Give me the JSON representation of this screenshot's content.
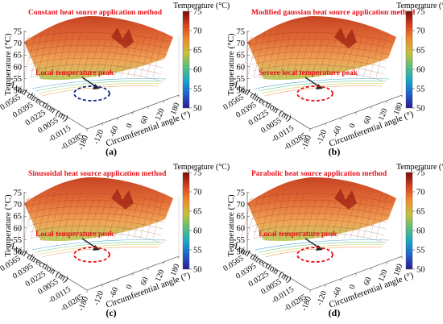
{
  "figure": {
    "colors": {
      "colormap": [
        "#2b1a8f",
        "#1f5fd0",
        "#18a6c8",
        "#5cc07a",
        "#c6c23a",
        "#f08a2a",
        "#d8401e",
        "#7a0a0a"
      ],
      "title_text": "#e8121b",
      "peak_ellipse_blue": "#1a2b8a",
      "peak_ellipse_red": "#e8121b"
    }
  },
  "chart_data": [
    {
      "type": "surface",
      "panel_label": "(a)",
      "title": "Constant heat source application method",
      "annotation": "Local temperature peak",
      "marker_color": "blue",
      "zlabel": "Temperature (°C)",
      "xlabel": "Circumferential angle (°)",
      "ylabel": "Axial direction (m)",
      "colorbar_title": "Temperature (°C)",
      "x_ticks": [
        "-180",
        "-120",
        "-60",
        "0",
        "60",
        "120",
        "180"
      ],
      "y_ticks": [
        "0.0565",
        "0.0395",
        "0.0225",
        "0.0055",
        "-0.0115",
        "-0.0285"
      ],
      "z_ticks": [
        "50",
        "55",
        "60",
        "65",
        "70",
        "75"
      ],
      "colorbar_ticks": [
        "50",
        "55",
        "60",
        "65",
        "70",
        "75"
      ],
      "zlim": [
        50,
        75
      ],
      "colorbar_range": [
        50,
        75
      ],
      "xlim": [
        -180,
        180
      ],
      "ylim": [
        -0.0285,
        0.0565
      ]
    },
    {
      "type": "surface",
      "panel_label": "(b)",
      "title": "Modified gaussian heat source application method",
      "annotation": "Severe local temperature peak",
      "marker_color": "red",
      "zlabel": "Temperature (°C)",
      "xlabel": "Circumferential angle (°)",
      "ylabel": "Axial direction (m)",
      "colorbar_title": "Temperature (°C)",
      "x_ticks": [
        "-180",
        "-120",
        "-60",
        "0",
        "60",
        "120",
        "180"
      ],
      "y_ticks": [
        "0.0565",
        "0.0395",
        "0.0225",
        "0.0055",
        "-0.0115",
        "-0.0285"
      ],
      "z_ticks": [
        "50",
        "55",
        "60",
        "65",
        "70",
        "75"
      ],
      "colorbar_ticks": [
        "50",
        "55",
        "60",
        "65",
        "70",
        "75"
      ],
      "zlim": [
        50,
        75
      ],
      "colorbar_range": [
        50,
        75
      ],
      "xlim": [
        -180,
        180
      ],
      "ylim": [
        -0.0285,
        0.0565
      ]
    },
    {
      "type": "surface",
      "panel_label": "(c)",
      "title": "Sinusoidal  heat source application method",
      "annotation": "Local temperature peak",
      "marker_color": "red",
      "zlabel": "Temperature (°C)",
      "xlabel": "Circumferential angle (°)",
      "ylabel": "Axial direction (m)",
      "colorbar_title": "Temperature (°C)",
      "x_ticks": [
        "-180",
        "-120",
        "-60",
        "0",
        "60",
        "120",
        "180"
      ],
      "y_ticks": [
        "0.0565",
        "0.0395",
        "0.0225",
        "0.0055",
        "-0.0115",
        "-0.0285"
      ],
      "z_ticks": [
        "50",
        "55",
        "60",
        "65",
        "70",
        "75"
      ],
      "colorbar_ticks": [
        "50",
        "55",
        "60",
        "65",
        "70",
        "75"
      ],
      "zlim": [
        50,
        75
      ],
      "colorbar_range": [
        50,
        75
      ],
      "xlim": [
        -180,
        180
      ],
      "ylim": [
        -0.0285,
        0.0565
      ]
    },
    {
      "type": "surface",
      "panel_label": "(d)",
      "title": "Parabolic heat source application method",
      "annotation": "Local temperature peak",
      "marker_color": "red",
      "zlabel": "Temperature (°C)",
      "xlabel": "Circumferential angle (°)",
      "ylabel": "Axial direction (m)",
      "colorbar_title": "Temperature (°C)",
      "x_ticks": [
        "-180",
        "-120",
        "-60",
        "0",
        "60",
        "120",
        "180"
      ],
      "y_ticks": [
        "0.0565",
        "0.0395",
        "0.0225",
        "0.0055",
        "-0.0115",
        "-0.0285"
      ],
      "z_ticks": [
        "50",
        "55",
        "60",
        "65",
        "70",
        "75"
      ],
      "colorbar_ticks": [
        "50",
        "55",
        "60",
        "65",
        "70",
        "75"
      ],
      "zlim": [
        50,
        75
      ],
      "colorbar_range": [
        50,
        75
      ],
      "xlim": [
        -180,
        180
      ],
      "ylim": [
        -0.0285,
        0.0565
      ]
    }
  ]
}
